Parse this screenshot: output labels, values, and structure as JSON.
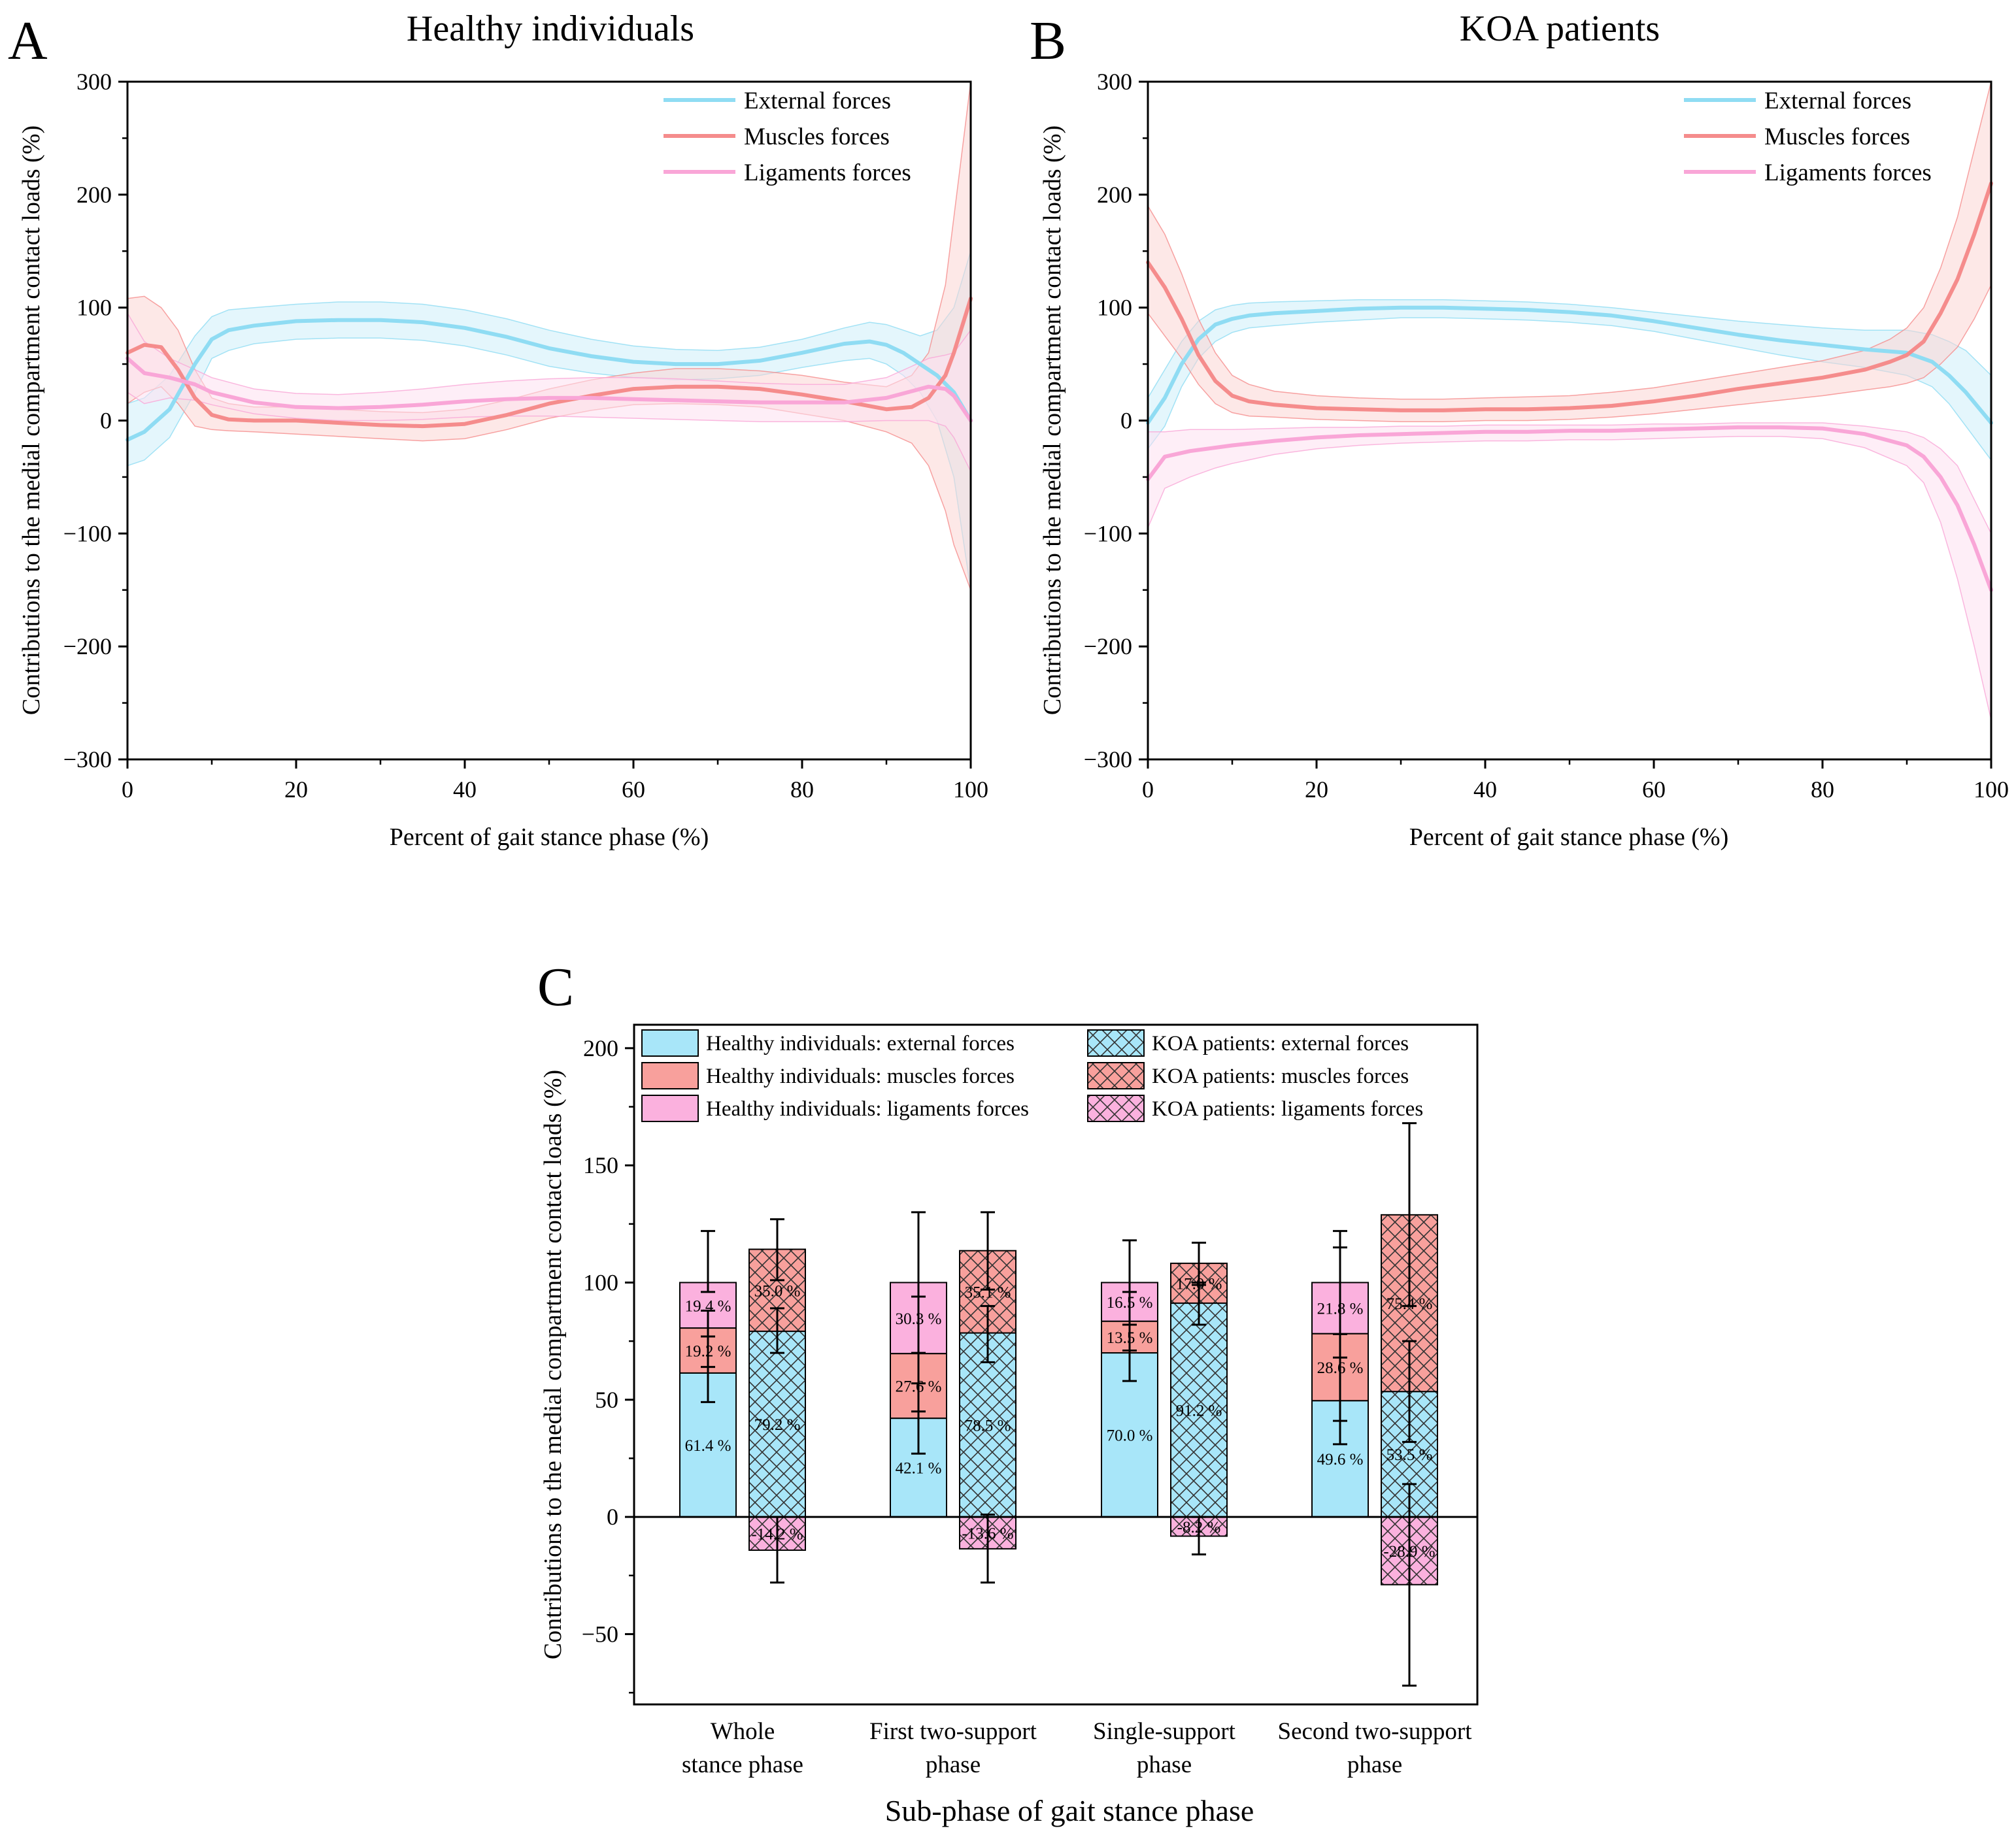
{
  "chart_data": [
    {
      "panel_letter": "A",
      "type": "line",
      "title": "Healthy individuals",
      "xlabel": "Percent of gait stance phase (%)",
      "ylabel": "Contributions to the medial compartment contact loads (%)",
      "xlim": [
        0,
        100
      ],
      "ylim": [
        -300,
        300
      ],
      "xticks": [
        0,
        20,
        40,
        60,
        80,
        100
      ],
      "yticks": [
        -300,
        -200,
        -100,
        0,
        100,
        200,
        300
      ],
      "legend_position": "top-right",
      "series": [
        {
          "name": "External forces",
          "color": "#8fdcf3",
          "band_color": "#cdeefa",
          "x": [
            0,
            2,
            5,
            8,
            10,
            12,
            15,
            20,
            25,
            30,
            35,
            40,
            45,
            50,
            55,
            60,
            65,
            70,
            75,
            80,
            85,
            88,
            90,
            92,
            94,
            96,
            98,
            100
          ],
          "mean": [
            -17,
            -10,
            10,
            50,
            72,
            80,
            84,
            88,
            89,
            89,
            87,
            82,
            74,
            64,
            57,
            52,
            50,
            50,
            53,
            60,
            68,
            70,
            67,
            60,
            50,
            40,
            25,
            0
          ],
          "upper": [
            15,
            20,
            40,
            75,
            92,
            98,
            100,
            103,
            105,
            105,
            103,
            98,
            90,
            80,
            72,
            66,
            63,
            62,
            65,
            72,
            82,
            87,
            85,
            80,
            75,
            80,
            100,
            150
          ],
          "lower": [
            -40,
            -35,
            -15,
            25,
            55,
            62,
            68,
            72,
            73,
            73,
            71,
            66,
            58,
            48,
            42,
            38,
            36,
            37,
            40,
            47,
            53,
            55,
            50,
            40,
            25,
            0,
            -50,
            -150
          ]
        },
        {
          "name": "Muscles forces",
          "color": "#f58c8c",
          "band_color": "#fcd5d3",
          "x": [
            0,
            2,
            4,
            6,
            8,
            10,
            12,
            15,
            20,
            25,
            30,
            35,
            40,
            45,
            50,
            55,
            60,
            65,
            70,
            75,
            80,
            85,
            90,
            93,
            95,
            97,
            98,
            100
          ],
          "mean": [
            60,
            67,
            65,
            45,
            20,
            5,
            1,
            0,
            0,
            -2,
            -4,
            -5,
            -3,
            5,
            15,
            22,
            28,
            30,
            30,
            28,
            23,
            17,
            10,
            12,
            20,
            40,
            60,
            108
          ],
          "upper": [
            108,
            110,
            100,
            80,
            45,
            20,
            15,
            12,
            12,
            10,
            8,
            7,
            10,
            18,
            28,
            36,
            42,
            46,
            46,
            44,
            40,
            34,
            30,
            40,
            60,
            120,
            180,
            300
          ],
          "lower": [
            15,
            25,
            30,
            15,
            -5,
            -8,
            -9,
            -10,
            -12,
            -14,
            -16,
            -18,
            -16,
            -8,
            2,
            9,
            14,
            15,
            14,
            12,
            6,
            0,
            -10,
            -20,
            -40,
            -80,
            -110,
            -150
          ]
        },
        {
          "name": "Ligaments forces",
          "color": "#f9a6d7",
          "band_color": "#fde0f1",
          "x": [
            0,
            2,
            5,
            8,
            10,
            15,
            20,
            25,
            30,
            35,
            40,
            45,
            50,
            55,
            60,
            65,
            70,
            75,
            80,
            85,
            90,
            93,
            95,
            97,
            98,
            100
          ],
          "mean": [
            55,
            42,
            38,
            32,
            25,
            16,
            12,
            11,
            12,
            14,
            17,
            19,
            20,
            20,
            19,
            18,
            17,
            16,
            16,
            16,
            20,
            26,
            30,
            28,
            22,
            0
          ],
          "upper": [
            95,
            70,
            55,
            45,
            38,
            28,
            24,
            23,
            25,
            28,
            32,
            35,
            37,
            38,
            38,
            37,
            35,
            33,
            32,
            32,
            38,
            48,
            55,
            58,
            60,
            80
          ],
          "lower": [
            25,
            15,
            20,
            18,
            14,
            6,
            2,
            0,
            0,
            1,
            3,
            4,
            4,
            3,
            2,
            1,
            0,
            -1,
            -1,
            -1,
            0,
            0,
            0,
            -5,
            -15,
            -45
          ]
        }
      ]
    },
    {
      "panel_letter": "B",
      "type": "line",
      "title": "KOA patients",
      "xlabel": "Percent of gait stance phase (%)",
      "ylabel": "Contributions to the medial compartment contact loads (%)",
      "xlim": [
        0,
        100
      ],
      "ylim": [
        -300,
        300
      ],
      "xticks": [
        0,
        20,
        40,
        60,
        80,
        100
      ],
      "yticks": [
        -300,
        -200,
        -100,
        0,
        100,
        200,
        300
      ],
      "legend_position": "top-right",
      "series": [
        {
          "name": "External forces",
          "color": "#8fdcf3",
          "band_color": "#cdeefa",
          "x": [
            0,
            2,
            4,
            6,
            8,
            10,
            12,
            15,
            20,
            25,
            30,
            35,
            40,
            45,
            50,
            55,
            60,
            65,
            70,
            75,
            80,
            85,
            90,
            93,
            95,
            97,
            100
          ],
          "mean": [
            -2,
            20,
            50,
            72,
            85,
            90,
            93,
            95,
            97,
            99,
            100,
            100,
            99,
            98,
            96,
            93,
            88,
            82,
            76,
            71,
            67,
            63,
            60,
            52,
            40,
            25,
            -2
          ],
          "upper": [
            20,
            45,
            70,
            88,
            98,
            102,
            104,
            105,
            106,
            107,
            107,
            107,
            106,
            105,
            103,
            100,
            96,
            92,
            88,
            85,
            82,
            80,
            80,
            76,
            70,
            62,
            40
          ],
          "lower": [
            -25,
            -5,
            30,
            55,
            70,
            78,
            82,
            84,
            87,
            89,
            91,
            91,
            90,
            89,
            87,
            84,
            79,
            72,
            65,
            58,
            52,
            47,
            40,
            30,
            15,
            -5,
            -35
          ]
        },
        {
          "name": "Muscles forces",
          "color": "#f58c8c",
          "band_color": "#fcd5d3",
          "x": [
            0,
            2,
            4,
            6,
            8,
            10,
            12,
            15,
            20,
            25,
            30,
            35,
            40,
            45,
            50,
            55,
            60,
            65,
            70,
            75,
            80,
            85,
            88,
            90,
            92,
            94,
            96,
            98,
            100
          ],
          "mean": [
            140,
            118,
            90,
            58,
            35,
            22,
            17,
            14,
            11,
            10,
            9,
            9,
            10,
            10,
            11,
            13,
            17,
            22,
            28,
            33,
            38,
            45,
            52,
            58,
            70,
            95,
            125,
            165,
            210
          ],
          "upper": [
            190,
            165,
            130,
            90,
            60,
            40,
            32,
            26,
            22,
            20,
            19,
            19,
            20,
            21,
            22,
            25,
            29,
            35,
            41,
            47,
            53,
            62,
            72,
            82,
            100,
            135,
            180,
            240,
            300
          ],
          "lower": [
            95,
            75,
            55,
            32,
            15,
            7,
            4,
            3,
            1,
            0,
            -1,
            -1,
            0,
            0,
            1,
            3,
            6,
            10,
            14,
            18,
            22,
            27,
            30,
            33,
            38,
            50,
            65,
            90,
            120
          ]
        },
        {
          "name": "Ligaments forces",
          "color": "#f9a6d7",
          "band_color": "#fde0f1",
          "x": [
            0,
            2,
            5,
            8,
            10,
            15,
            20,
            25,
            30,
            35,
            40,
            45,
            50,
            55,
            60,
            65,
            70,
            75,
            80,
            85,
            90,
            92,
            94,
            96,
            98,
            100
          ],
          "mean": [
            -52,
            -32,
            -27,
            -24,
            -22,
            -18,
            -15,
            -13,
            -12,
            -11,
            -10,
            -10,
            -9,
            -9,
            -8,
            -7,
            -6,
            -6,
            -7,
            -12,
            -22,
            -32,
            -50,
            -75,
            -110,
            -150
          ],
          "upper": [
            -10,
            -10,
            -8,
            -8,
            -8,
            -7,
            -6,
            -6,
            -5,
            -5,
            -4,
            -4,
            -4,
            -4,
            -3,
            -3,
            -2,
            -2,
            -2,
            -5,
            -10,
            -15,
            -25,
            -40,
            -70,
            -100
          ],
          "lower": [
            -95,
            -60,
            -50,
            -42,
            -38,
            -30,
            -25,
            -22,
            -20,
            -19,
            -18,
            -18,
            -17,
            -17,
            -16,
            -15,
            -14,
            -14,
            -16,
            -24,
            -40,
            -55,
            -90,
            -140,
            -200,
            -265
          ]
        }
      ]
    },
    {
      "panel_letter": "C",
      "type": "bar",
      "subtype": "stacked",
      "xlabel": "Sub-phase of gait stance phase",
      "ylabel": "Contributions to the medial compartment contact loads (%)",
      "ylim": [
        -80,
        210
      ],
      "yticks": [
        -50,
        0,
        50,
        100,
        150,
        200
      ],
      "legend_position": "top",
      "categories": [
        {
          "line1": "Whole",
          "line2": "stance phase"
        },
        {
          "line1": "First two-support",
          "line2": "phase"
        },
        {
          "line1": "Single-support",
          "line2": "phase"
        },
        {
          "line1": "Second two-support",
          "line2": "phase"
        }
      ],
      "legend": [
        {
          "label": "Healthy individuals: external forces",
          "color": "#a8e6f9",
          "hatched": false
        },
        {
          "label": "Healthy individuals: muscles forces",
          "color": "#f8a09c",
          "hatched": false
        },
        {
          "label": "Healthy individuals: ligaments forces",
          "color": "#fbb1de",
          "hatched": false
        },
        {
          "label": "KOA patients: external forces",
          "color": "#a8e6f9",
          "hatched": true
        },
        {
          "label": "KOA patients: muscles forces",
          "color": "#f8a09c",
          "hatched": true
        },
        {
          "label": "KOA patients: ligaments forces",
          "color": "#fbb1de",
          "hatched": true
        }
      ],
      "groups": [
        {
          "healthy": {
            "external": 61.4,
            "muscles": 19.2,
            "ligaments": 19.4,
            "external_label": "61.4 %",
            "muscles_label": "19.2 %",
            "ligaments_label": "19.4 %",
            "err_external": [
              49,
              77
            ],
            "err_muscles": [
              64,
              88
            ],
            "err_ligaments": [
              96,
              122
            ]
          },
          "koa": {
            "external": 79.2,
            "muscles": 35.0,
            "ligaments": -14.2,
            "external_label": "79.2 %",
            "muscles_label": "35.0 %",
            "ligaments_label": "-14.2 %",
            "err_external": [
              70,
              89
            ],
            "err_muscles": [
              101,
              127
            ],
            "err_ligaments": [
              -28,
              0
            ]
          }
        },
        {
          "healthy": {
            "external": 42.1,
            "muscles": 27.6,
            "ligaments": 30.3,
            "external_label": "42.1 %",
            "muscles_label": "27.6 %",
            "ligaments_label": "30.3 %",
            "err_external": [
              27,
              57
            ],
            "err_muscles": [
              45,
              94
            ],
            "err_ligaments": [
              70,
              130
            ]
          },
          "koa": {
            "external": 78.5,
            "muscles": 35.1,
            "ligaments": -13.6,
            "external_label": "78.5 %",
            "muscles_label": "35.1 %",
            "ligaments_label": "-13.6 %",
            "err_external": [
              66,
              90
            ],
            "err_muscles": [
              97,
              130
            ],
            "err_ligaments": [
              -28,
              1
            ]
          },
          "labels_note": ""
        },
        {
          "healthy": {
            "external": 70.0,
            "muscles": 13.5,
            "ligaments": 16.5,
            "external_label": "70.0 %",
            "muscles_label": "13.5 %",
            "ligaments_label": "16.5 %",
            "err_external": [
              58,
              82
            ],
            "err_muscles": [
              71,
              96
            ],
            "err_ligaments": [
              82,
              118
            ]
          },
          "koa": {
            "external": 91.2,
            "muscles": 17.0,
            "ligaments": -8.2,
            "external_label": "91.2 %",
            "muscles_label": "17.0 %",
            "ligaments_label": "-8.2 %",
            "err_external": [
              82,
              100
            ],
            "err_muscles": [
              99,
              117
            ],
            "err_ligaments": [
              -16,
              0
            ]
          }
        },
        {
          "healthy": {
            "external": 49.6,
            "muscles": 28.6,
            "ligaments": 21.8,
            "external_label": "49.6 %",
            "muscles_label": "28.6 %",
            "ligaments_label": "21.8 %",
            "err_external": [
              31,
              68
            ],
            "err_muscles": [
              41,
              115
            ],
            "err_ligaments": [
              78,
              122
            ]
          },
          "koa": {
            "external": 53.5,
            "muscles": 75.4,
            "ligaments": -28.9,
            "external_label": "53.5 %",
            "muscles_label": "75.4 %",
            "ligaments_label": "-28.9 %",
            "err_external": [
              32,
              75
            ],
            "err_muscles": [
              90,
              168
            ],
            "err_ligaments": [
              -72,
              14
            ]
          }
        }
      ]
    }
  ]
}
